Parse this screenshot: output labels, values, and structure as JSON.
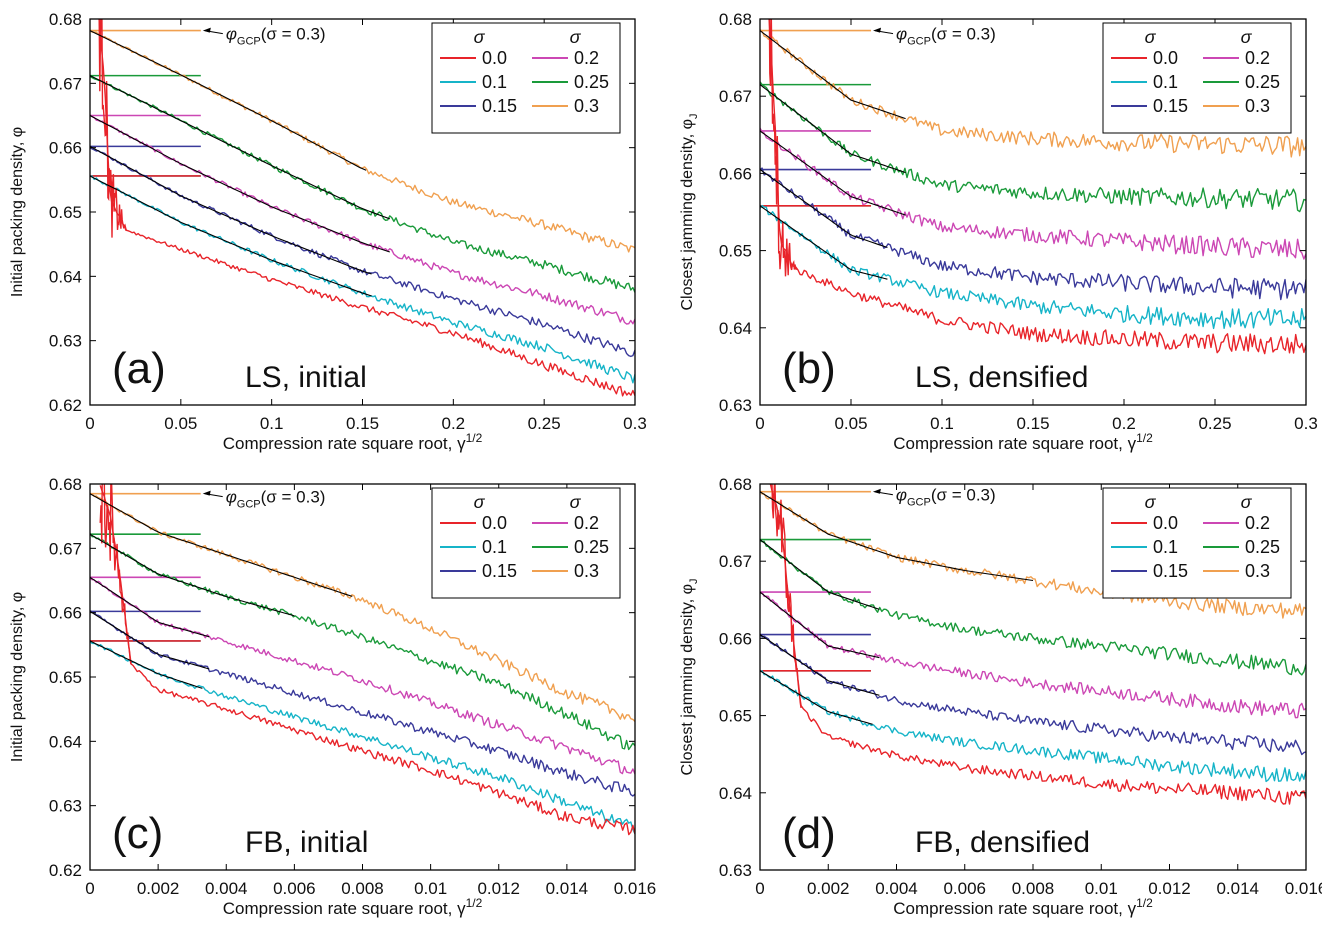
{
  "colors": {
    "0.0": "#e8242a",
    "0.1": "#16b4c8",
    "0.15": "#3a3a9a",
    "0.2": "#cc47b4",
    "0.25": "#1a9a3a",
    "0.3": "#f0a050",
    "fit": "#000000"
  },
  "legend": {
    "header": "σ",
    "entries": [
      {
        "sigma": "0.0",
        "label": "0.0"
      },
      {
        "sigma": "0.1",
        "label": "0.1"
      },
      {
        "sigma": "0.15",
        "label": "0.15"
      },
      {
        "sigma": "0.2",
        "label": "0.2"
      },
      {
        "sigma": "0.25",
        "label": "0.25"
      },
      {
        "sigma": "0.3",
        "label": "0.3"
      }
    ]
  },
  "annotation": {
    "phi": "φ",
    "sub": "GCP",
    "rest": "(σ = 0.3)"
  },
  "chart_data": [
    {
      "panel": "a",
      "type": "line",
      "label": "(a)",
      "caption": "LS, initial",
      "xlabel": "Compression rate square root, γ",
      "xlabel_sup": "1/2",
      "ylabel": "Initial packing density, φ",
      "xlim": [
        0,
        0.3
      ],
      "ylim": [
        0.62,
        0.68
      ],
      "xticks": [
        "0",
        "0.05",
        "0.1",
        "0.15",
        "0.2",
        "0.25",
        "0.3"
      ],
      "yticks": [
        "0.62",
        "0.63",
        "0.64",
        "0.65",
        "0.66",
        "0.67",
        "0.68"
      ],
      "gcp_levels": {
        "0.0": 0.6556,
        "0.1": 0.6556,
        "0.15": 0.6602,
        "0.2": 0.665,
        "0.25": 0.6712,
        "0.3": 0.6782
      },
      "gcp_line_xmax": 0.061,
      "fit_xmax": {
        "0.1": 0.155,
        "0.15": 0.155,
        "0.2": 0.165,
        "0.25": 0.165,
        "0.3": 0.152
      },
      "noise": 0.0006,
      "series": [
        {
          "sigma": "0.3",
          "x": [
            0,
            0.05,
            0.1,
            0.15,
            0.2,
            0.25,
            0.3
          ],
          "values": [
            0.6782,
            0.6713,
            0.6642,
            0.6567,
            0.6515,
            0.648,
            0.644
          ]
        },
        {
          "sigma": "0.25",
          "x": [
            0,
            0.05,
            0.1,
            0.15,
            0.2,
            0.25,
            0.3
          ],
          "values": [
            0.6712,
            0.6642,
            0.6572,
            0.6505,
            0.6453,
            0.6418,
            0.638
          ]
        },
        {
          "sigma": "0.2",
          "x": [
            0,
            0.05,
            0.1,
            0.15,
            0.2,
            0.25,
            0.3
          ],
          "values": [
            0.665,
            0.6575,
            0.6508,
            0.6452,
            0.6405,
            0.637,
            0.633
          ]
        },
        {
          "sigma": "0.15",
          "x": [
            0,
            0.05,
            0.1,
            0.15,
            0.2,
            0.25,
            0.3
          ],
          "values": [
            0.6602,
            0.6525,
            0.6463,
            0.6408,
            0.6365,
            0.6325,
            0.628
          ]
        },
        {
          "sigma": "0.1",
          "x": [
            0,
            0.05,
            0.1,
            0.15,
            0.2,
            0.25,
            0.3
          ],
          "values": [
            0.6556,
            0.6484,
            0.6425,
            0.6374,
            0.6328,
            0.629,
            0.624
          ]
        },
        {
          "sigma": "0.0",
          "x": [
            0.005,
            0.008,
            0.011,
            0.02,
            0.05,
            0.1,
            0.15,
            0.2,
            0.25,
            0.3
          ],
          "values": [
            0.68,
            0.67,
            0.652,
            0.6472,
            0.6442,
            0.6395,
            0.6352,
            0.6312,
            0.6262,
            0.6215
          ]
        }
      ]
    },
    {
      "panel": "b",
      "type": "line",
      "label": "(b)",
      "caption": "LS, densified",
      "xlabel": "Compression rate square root, γ",
      "xlabel_sup": "1/2",
      "ylabel": "Closest jamming density, φ",
      "ylabel_sub": "J",
      "xlim": [
        0,
        0.3
      ],
      "ylim": [
        0.63,
        0.68
      ],
      "xticks": [
        "0",
        "0.05",
        "0.1",
        "0.15",
        "0.2",
        "0.25",
        "0.3"
      ],
      "yticks": [
        "0.63",
        "0.64",
        "0.65",
        "0.66",
        "0.67",
        "0.68"
      ],
      "gcp_levels": {
        "0.0": 0.6558,
        "0.1": 0.6558,
        "0.15": 0.6605,
        "0.2": 0.6655,
        "0.25": 0.6715,
        "0.3": 0.6785
      },
      "gcp_line_xmax": 0.061,
      "fit_xmax": {
        "0.1": 0.07,
        "0.15": 0.07,
        "0.2": 0.08,
        "0.25": 0.08,
        "0.3": 0.08
      },
      "noise": 0.0011,
      "series": [
        {
          "sigma": "0.3",
          "x": [
            0,
            0.05,
            0.1,
            0.15,
            0.2,
            0.25,
            0.3
          ],
          "values": [
            0.6785,
            0.6695,
            0.6655,
            0.6645,
            0.664,
            0.6638,
            0.6635
          ]
        },
        {
          "sigma": "0.25",
          "x": [
            0,
            0.05,
            0.1,
            0.15,
            0.2,
            0.25,
            0.3
          ],
          "values": [
            0.6715,
            0.6625,
            0.6585,
            0.6575,
            0.657,
            0.6568,
            0.6565
          ]
        },
        {
          "sigma": "0.2",
          "x": [
            0,
            0.05,
            0.1,
            0.15,
            0.2,
            0.25,
            0.3
          ],
          "values": [
            0.6655,
            0.657,
            0.653,
            0.652,
            0.6512,
            0.6505,
            0.65
          ]
        },
        {
          "sigma": "0.15",
          "x": [
            0,
            0.05,
            0.1,
            0.15,
            0.2,
            0.25,
            0.3
          ],
          "values": [
            0.6605,
            0.652,
            0.648,
            0.6465,
            0.6458,
            0.6452,
            0.645
          ]
        },
        {
          "sigma": "0.1",
          "x": [
            0,
            0.05,
            0.1,
            0.15,
            0.2,
            0.25,
            0.3
          ],
          "values": [
            0.6558,
            0.6475,
            0.6445,
            0.6428,
            0.6418,
            0.6412,
            0.641
          ]
        },
        {
          "sigma": "0.0",
          "x": [
            0.005,
            0.008,
            0.011,
            0.02,
            0.05,
            0.1,
            0.15,
            0.2,
            0.25,
            0.3
          ],
          "values": [
            0.68,
            0.668,
            0.651,
            0.6475,
            0.6445,
            0.641,
            0.6392,
            0.6385,
            0.638,
            0.6378
          ]
        }
      ]
    },
    {
      "panel": "c",
      "type": "line",
      "label": "(c)",
      "caption": "FB, initial",
      "xlabel": "Compression rate square root, γ",
      "xlabel_sup": "1/2",
      "ylabel": "Initial packing density, φ",
      "xlim": [
        0,
        0.016
      ],
      "ylim": [
        0.62,
        0.68
      ],
      "xticks": [
        "0",
        "0.002",
        "0.004",
        "0.006",
        "0.008",
        "0.01",
        "0.012",
        "0.014",
        "0.016"
      ],
      "yticks": [
        "0.62",
        "0.63",
        "0.64",
        "0.65",
        "0.66",
        "0.67",
        "0.68"
      ],
      "gcp_levels": {
        "0.0": 0.6556,
        "0.1": 0.6556,
        "0.15": 0.6602,
        "0.2": 0.6655,
        "0.25": 0.6722,
        "0.3": 0.6785
      },
      "gcp_line_xmax": 0.00325,
      "fit_xmax": {
        "0.1": 0.0033,
        "0.15": 0.0035,
        "0.2": 0.0035,
        "0.25": 0.006,
        "0.3": 0.0077
      },
      "noise": 0.0007,
      "series": [
        {
          "sigma": "0.3",
          "x": [
            0,
            0.002,
            0.004,
            0.006,
            0.008,
            0.01,
            0.012,
            0.014,
            0.016
          ],
          "values": [
            0.6785,
            0.6725,
            0.669,
            0.6655,
            0.662,
            0.6575,
            0.6525,
            0.6475,
            0.6435
          ]
        },
        {
          "sigma": "0.25",
          "x": [
            0,
            0.002,
            0.004,
            0.006,
            0.008,
            0.01,
            0.012,
            0.014,
            0.016
          ],
          "values": [
            0.6722,
            0.666,
            0.6625,
            0.6595,
            0.6562,
            0.6525,
            0.649,
            0.6442,
            0.6388
          ]
        },
        {
          "sigma": "0.2",
          "x": [
            0,
            0.002,
            0.004,
            0.006,
            0.008,
            0.01,
            0.012,
            0.014,
            0.016
          ],
          "values": [
            0.6655,
            0.6585,
            0.6555,
            0.6525,
            0.6495,
            0.646,
            0.6425,
            0.639,
            0.6352
          ]
        },
        {
          "sigma": "0.15",
          "x": [
            0,
            0.002,
            0.004,
            0.006,
            0.008,
            0.01,
            0.012,
            0.014,
            0.016
          ],
          "values": [
            0.6602,
            0.6535,
            0.6505,
            0.6475,
            0.6445,
            0.6415,
            0.6385,
            0.635,
            0.632
          ]
        },
        {
          "sigma": "0.1",
          "x": [
            0,
            0.002,
            0.004,
            0.006,
            0.008,
            0.01,
            0.012,
            0.014,
            0.016
          ],
          "values": [
            0.6556,
            0.6505,
            0.647,
            0.6438,
            0.6408,
            0.6375,
            0.6345,
            0.6305,
            0.6265
          ]
        },
        {
          "sigma": "0.0",
          "x": [
            0.0003,
            0.0006,
            0.0009,
            0.0012,
            0.002,
            0.004,
            0.006,
            0.008,
            0.01,
            0.012,
            0.014,
            0.016
          ],
          "values": [
            0.68,
            0.675,
            0.665,
            0.652,
            0.648,
            0.645,
            0.6418,
            0.6385,
            0.6355,
            0.632,
            0.6282,
            0.6262
          ]
        }
      ]
    },
    {
      "panel": "d",
      "type": "line",
      "label": "(d)",
      "caption": "FB, densified",
      "xlabel": "Compression rate square root, γ",
      "xlabel_sup": "1/2",
      "ylabel": "Closest jamming density, φ",
      "ylabel_sub": "J",
      "xlim": [
        0,
        0.016
      ],
      "ylim": [
        0.63,
        0.68
      ],
      "xticks": [
        "0",
        "0.002",
        "0.004",
        "0.006",
        "0.008",
        "0.01",
        "0.012",
        "0.014",
        "0.016"
      ],
      "yticks": [
        "0.63",
        "0.64",
        "0.65",
        "0.66",
        "0.67",
        "0.68"
      ],
      "gcp_levels": {
        "0.0": 0.6558,
        "0.1": 0.6558,
        "0.15": 0.6605,
        "0.2": 0.666,
        "0.25": 0.6728,
        "0.3": 0.679
      },
      "gcp_line_xmax": 0.00325,
      "fit_xmax": {
        "0.1": 0.0033,
        "0.15": 0.0035,
        "0.2": 0.0035,
        "0.25": 0.0035,
        "0.3": 0.008
      },
      "noise": 0.0008,
      "series": [
        {
          "sigma": "0.3",
          "x": [
            0,
            0.002,
            0.004,
            0.006,
            0.008,
            0.01,
            0.012,
            0.014,
            0.016
          ],
          "values": [
            0.679,
            0.6735,
            0.6705,
            0.6688,
            0.6675,
            0.666,
            0.6648,
            0.664,
            0.6635
          ]
        },
        {
          "sigma": "0.25",
          "x": [
            0,
            0.002,
            0.004,
            0.006,
            0.008,
            0.01,
            0.012,
            0.014,
            0.016
          ],
          "values": [
            0.6728,
            0.666,
            0.663,
            0.6612,
            0.66,
            0.659,
            0.658,
            0.657,
            0.6562
          ]
        },
        {
          "sigma": "0.2",
          "x": [
            0,
            0.002,
            0.004,
            0.006,
            0.008,
            0.01,
            0.012,
            0.014,
            0.016
          ],
          "values": [
            0.666,
            0.659,
            0.657,
            0.6555,
            0.6542,
            0.6532,
            0.6522,
            0.6512,
            0.6505
          ]
        },
        {
          "sigma": "0.15",
          "x": [
            0,
            0.002,
            0.004,
            0.006,
            0.008,
            0.01,
            0.012,
            0.014,
            0.016
          ],
          "values": [
            0.6605,
            0.6545,
            0.652,
            0.6505,
            0.6492,
            0.6482,
            0.6472,
            0.6465,
            0.6458
          ]
        },
        {
          "sigma": "0.1",
          "x": [
            0,
            0.002,
            0.004,
            0.006,
            0.008,
            0.01,
            0.012,
            0.014,
            0.016
          ],
          "values": [
            0.6558,
            0.6505,
            0.648,
            0.6465,
            0.6455,
            0.6445,
            0.6435,
            0.6428,
            0.642
          ]
        },
        {
          "sigma": "0.0",
          "x": [
            0.0003,
            0.0006,
            0.0009,
            0.0012,
            0.002,
            0.004,
            0.006,
            0.008,
            0.01,
            0.012,
            0.014,
            0.016
          ],
          "values": [
            0.68,
            0.675,
            0.663,
            0.651,
            0.6472,
            0.6448,
            0.6432,
            0.6422,
            0.6412,
            0.6405,
            0.64,
            0.6392
          ]
        }
      ]
    }
  ]
}
